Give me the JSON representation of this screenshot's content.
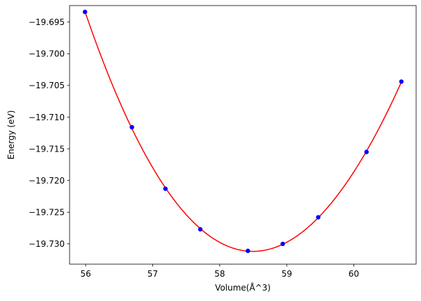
{
  "chart_data": {
    "type": "line",
    "title": "",
    "xlabel": "Volume(Å^3)",
    "ylabel": "Energy (eV)",
    "xlim": [
      55.76,
      60.93
    ],
    "ylim": [
      -19.7332,
      -19.6924
    ],
    "x_ticks": [
      56,
      57,
      58,
      59,
      60
    ],
    "x_tick_labels": [
      "56",
      "57",
      "58",
      "59",
      "60"
    ],
    "y_ticks": [
      -19.695,
      -19.7,
      -19.705,
      -19.71,
      -19.715,
      -19.72,
      -19.725,
      -19.73
    ],
    "y_tick_labels": [
      "−19.695",
      "−19.700",
      "−19.705",
      "−19.710",
      "−19.715",
      "−19.720",
      "−19.725",
      "−19.730"
    ],
    "grid": false,
    "legend": "none",
    "series": [
      {
        "kind": "scatter",
        "color": "#0000ff",
        "x": [
          55.99,
          56.69,
          57.19,
          57.71,
          58.42,
          58.94,
          59.47,
          60.19,
          60.71
        ],
        "y": [
          -19.6934,
          -19.7116,
          -19.7213,
          -19.7277,
          -19.7311,
          -19.73,
          -19.7258,
          -19.7155,
          -19.7044
        ]
      },
      {
        "kind": "fit-curve",
        "color": "#ff0000",
        "fit": {
          "x": [
            55.99,
            56.69,
            57.19,
            57.71,
            58.42,
            58.94,
            59.47,
            60.19,
            60.71
          ],
          "y": [
            -19.6934,
            -19.7116,
            -19.7213,
            -19.7277,
            -19.7311,
            -19.73,
            -19.7258,
            -19.7155,
            -19.7044
          ]
        }
      }
    ]
  }
}
